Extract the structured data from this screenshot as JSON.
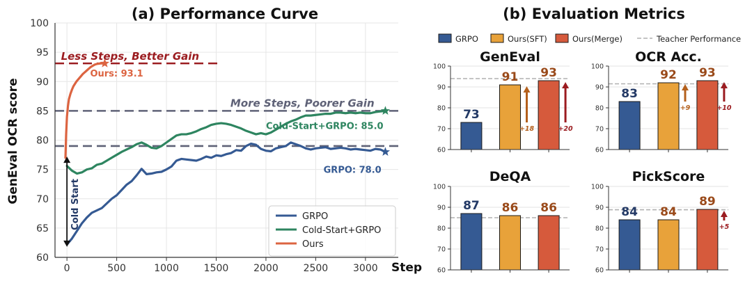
{
  "colors": {
    "grpo": "#355a93",
    "cold": "#2e8560",
    "ours": "#dc6441",
    "sft": "#e8a23a",
    "merge": "#d65a3c",
    "ref_dark_red": "#9b1c20",
    "ref_slate": "#5f6277",
    "dark_orange": "#b4601c",
    "teacher_line": "#b0b0b0",
    "navy_label": "#243a66",
    "brown_label": "#9a4a1a"
  },
  "chart_data": [
    {
      "type": "line",
      "title": "(a) Performance Curve",
      "ylabel": "GenEval OCR score",
      "xlabel": "Step",
      "xlim": [
        -120,
        3330
      ],
      "ylim": [
        60,
        100
      ],
      "xticks": [
        0,
        500,
        1000,
        1500,
        2000,
        2500,
        3000
      ],
      "yticks": [
        60,
        65,
        70,
        75,
        80,
        85,
        90,
        95,
        100
      ],
      "grid": true,
      "legend_position": "lower-right",
      "series": [
        {
          "name": "GRPO",
          "color_key": "grpo",
          "x": [
            0,
            50,
            100,
            150,
            200,
            250,
            300,
            350,
            400,
            450,
            500,
            550,
            600,
            650,
            700,
            750,
            800,
            850,
            900,
            950,
            1000,
            1050,
            1100,
            1150,
            1200,
            1250,
            1300,
            1350,
            1400,
            1450,
            1500,
            1550,
            1600,
            1650,
            1700,
            1750,
            1800,
            1850,
            1900,
            1950,
            2000,
            2050,
            2100,
            2150,
            2200,
            2250,
            2300,
            2350,
            2400,
            2450,
            2500,
            2550,
            2600,
            2650,
            2700,
            2750,
            2800,
            2850,
            2900,
            2950,
            3000,
            3050,
            3100,
            3150,
            3200
          ],
          "values": [
            62.2,
            63.2,
            64.5,
            65.8,
            66.8,
            67.6,
            68.0,
            68.4,
            69.2,
            70.0,
            70.6,
            71.5,
            72.4,
            73.0,
            74.0,
            75.1,
            74.2,
            74.3,
            74.5,
            74.6,
            75.0,
            75.5,
            76.5,
            76.8,
            76.7,
            76.6,
            76.5,
            76.8,
            77.2,
            77.0,
            77.4,
            77.3,
            77.6,
            77.8,
            78.3,
            78.2,
            79.0,
            79.4,
            79.2,
            78.5,
            78.2,
            78.1,
            78.6,
            78.8,
            79.0,
            79.6,
            79.3,
            79.0,
            78.6,
            78.4,
            78.6,
            78.7,
            78.8,
            78.5,
            78.6,
            78.7,
            78.6,
            78.4,
            78.5,
            78.4,
            78.3,
            78.2,
            78.5,
            78.4,
            78.0
          ],
          "end_label": "GRPO: 78.0"
        },
        {
          "name": "Cold-Start+GRPO",
          "color_key": "cold",
          "x": [
            0,
            50,
            100,
            150,
            200,
            250,
            300,
            350,
            400,
            450,
            500,
            550,
            600,
            650,
            700,
            750,
            800,
            850,
            900,
            950,
            1000,
            1050,
            1100,
            1150,
            1200,
            1250,
            1300,
            1350,
            1400,
            1450,
            1500,
            1550,
            1600,
            1650,
            1700,
            1750,
            1800,
            1850,
            1900,
            1950,
            2000,
            2050,
            2100,
            2150,
            2200,
            2250,
            2300,
            2350,
            2400,
            2450,
            2500,
            2550,
            2600,
            2650,
            2700,
            2750,
            2800,
            2850,
            2900,
            2950,
            3000,
            3050,
            3100,
            3150,
            3200
          ],
          "values": [
            75.6,
            74.8,
            74.3,
            74.5,
            75.0,
            75.2,
            75.8,
            76.0,
            76.5,
            77.0,
            77.5,
            78.0,
            78.4,
            78.8,
            79.3,
            79.6,
            79.2,
            78.7,
            78.6,
            79.0,
            79.6,
            80.2,
            80.8,
            81.0,
            81.0,
            81.2,
            81.5,
            81.9,
            82.2,
            82.6,
            82.8,
            82.9,
            82.8,
            82.6,
            82.3,
            82.0,
            81.6,
            81.3,
            81.0,
            81.2,
            81.0,
            81.3,
            81.8,
            82.3,
            82.8,
            83.2,
            83.5,
            83.9,
            84.2,
            84.2,
            84.3,
            84.4,
            84.5,
            84.5,
            84.7,
            84.7,
            84.6,
            84.7,
            84.6,
            84.7,
            84.6,
            84.6,
            84.8,
            84.9,
            85.0
          ],
          "end_label": "Cold-Start+GRPO: 85.0"
        },
        {
          "name": "Ours",
          "color_key": "ours",
          "x": [
            -15,
            -8,
            0,
            10,
            20,
            35,
            50,
            65,
            80,
            95,
            110,
            125,
            140,
            160,
            180,
            200,
            220,
            240,
            260,
            280,
            300,
            320,
            340,
            360,
            380
          ],
          "values": [
            77.0,
            81.0,
            84.0,
            85.8,
            87.0,
            87.9,
            88.6,
            89.2,
            89.6,
            90.0,
            90.3,
            90.6,
            90.9,
            91.3,
            91.6,
            91.9,
            92.2,
            92.5,
            92.7,
            92.9,
            93.0,
            93.05,
            93.1,
            93.1,
            93.1
          ],
          "end_label": "Ours: 93.1"
        }
      ],
      "reference_lines": [
        {
          "y": 93.1,
          "x_range": [
            -120,
            1550
          ],
          "color_key": "ref_dark_red",
          "text": "Less Steps, Better Gain"
        },
        {
          "y": 85.0,
          "x_range": [
            -120,
            3330
          ],
          "color_key": "ref_slate",
          "text": "More Steps, Poorer Gain"
        },
        {
          "y": 79.0,
          "x_range": [
            -120,
            3330
          ],
          "color_key": "ref_slate",
          "text": ""
        }
      ],
      "cold_start_label": "Cold Start"
    },
    {
      "type": "bar",
      "title": "(b) Evaluation Metrics",
      "legend": [
        {
          "label": "GRPO",
          "kind": "bar",
          "color_key": "grpo"
        },
        {
          "label": "Ours(SFT)",
          "kind": "bar",
          "color_key": "sft"
        },
        {
          "label": "Ours(Merge)",
          "kind": "bar",
          "color_key": "merge"
        },
        {
          "label": "Teacher Performance",
          "kind": "dash",
          "color_key": "teacher_line"
        }
      ],
      "categories": [
        "GRPO",
        "Ours(SFT)",
        "Ours(Merge)"
      ],
      "ylim": [
        60,
        100
      ],
      "yticks": [
        60,
        70,
        80,
        90,
        100
      ],
      "panels": [
        {
          "title": "GenEval",
          "values": [
            73,
            91,
            93
          ],
          "teacher": 94,
          "gains": [
            {
              "text": "+18",
              "bar": 1,
              "color_key": "dark_orange"
            },
            {
              "text": "+20",
              "bar": 2,
              "color_key": "ref_dark_red"
            }
          ]
        },
        {
          "title": "OCR Acc.",
          "values": [
            83,
            92,
            93
          ],
          "teacher": 91.5,
          "gains": [
            {
              "text": "+9",
              "bar": 1,
              "color_key": "dark_orange"
            },
            {
              "text": "+10",
              "bar": 2,
              "color_key": "ref_dark_red"
            }
          ]
        },
        {
          "title": "DeQA",
          "values": [
            87,
            86,
            86
          ],
          "teacher": 85,
          "gains": []
        },
        {
          "title": "PickScore",
          "values": [
            84,
            84,
            89
          ],
          "teacher": 88.8,
          "gains": [
            {
              "text": "+5",
              "bar": 2,
              "color_key": "ref_dark_red"
            }
          ]
        }
      ]
    }
  ]
}
